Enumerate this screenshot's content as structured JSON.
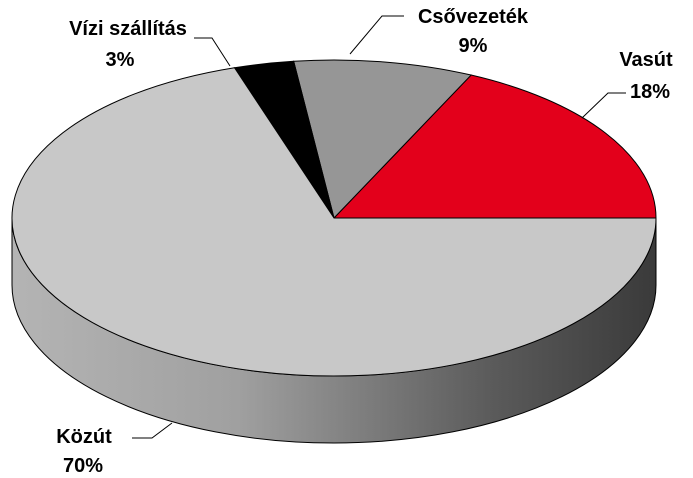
{
  "chart_data": {
    "type": "pie",
    "style": "3d",
    "legend": "none",
    "slices": [
      {
        "label": "Közút",
        "value": 70,
        "value_label": "70%",
        "color": "#c8c8c8"
      },
      {
        "label": "Vízi szállítás",
        "value": 3,
        "value_label": "3%",
        "color": "#000000"
      },
      {
        "label": "Csővezeték",
        "value": 9,
        "value_label": "9%",
        "color": "#969696"
      },
      {
        "label": "Vasút",
        "value": 18,
        "value_label": "18%",
        "color": "#e3001b"
      }
    ]
  }
}
